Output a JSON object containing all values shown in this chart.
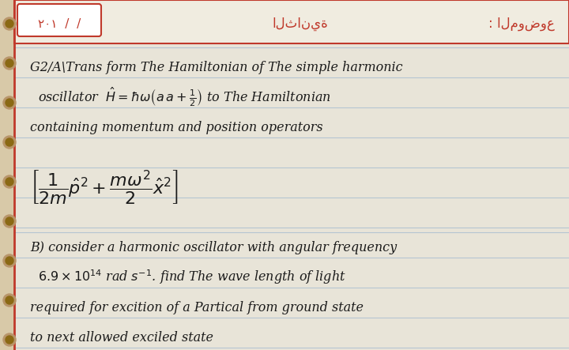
{
  "bg_color": "#d8c9a8",
  "page_color": "#e8e4d8",
  "line_color": "#a0b8d0",
  "red_color": "#c0392b",
  "dark_text": "#1a1a1a",
  "header_right_text": ": الموضوع",
  "header_center_text": "الثانية",
  "header_left_text": "٢۰۱  /  /",
  "lines": [
    "G2/A\\Trans form The Hamiltonian of The simple harmonic",
    "oscillator  $\\hat{H} = \\hbar\\omega\\left(a a + \\frac{1}{2}\\right)$ to The Hamiltonian",
    "containing momentum and position operators",
    "",
    "$\\left[\\frac{1}{2m}\\hat{p}^2 + \\frac{m\\omega^2}{2}\\hat{x}^2\\right]$",
    "",
    "B) consider a harmonic oscillator with angular frequency",
    "$6.9\\times10^{14}$ rad $s^{-1}$. find The wave length of light",
    "required for excition of a Partical from ground state",
    "to next allowed exciled state"
  ],
  "figwidth": 7.2,
  "figheight": 4.43,
  "dpi": 100
}
